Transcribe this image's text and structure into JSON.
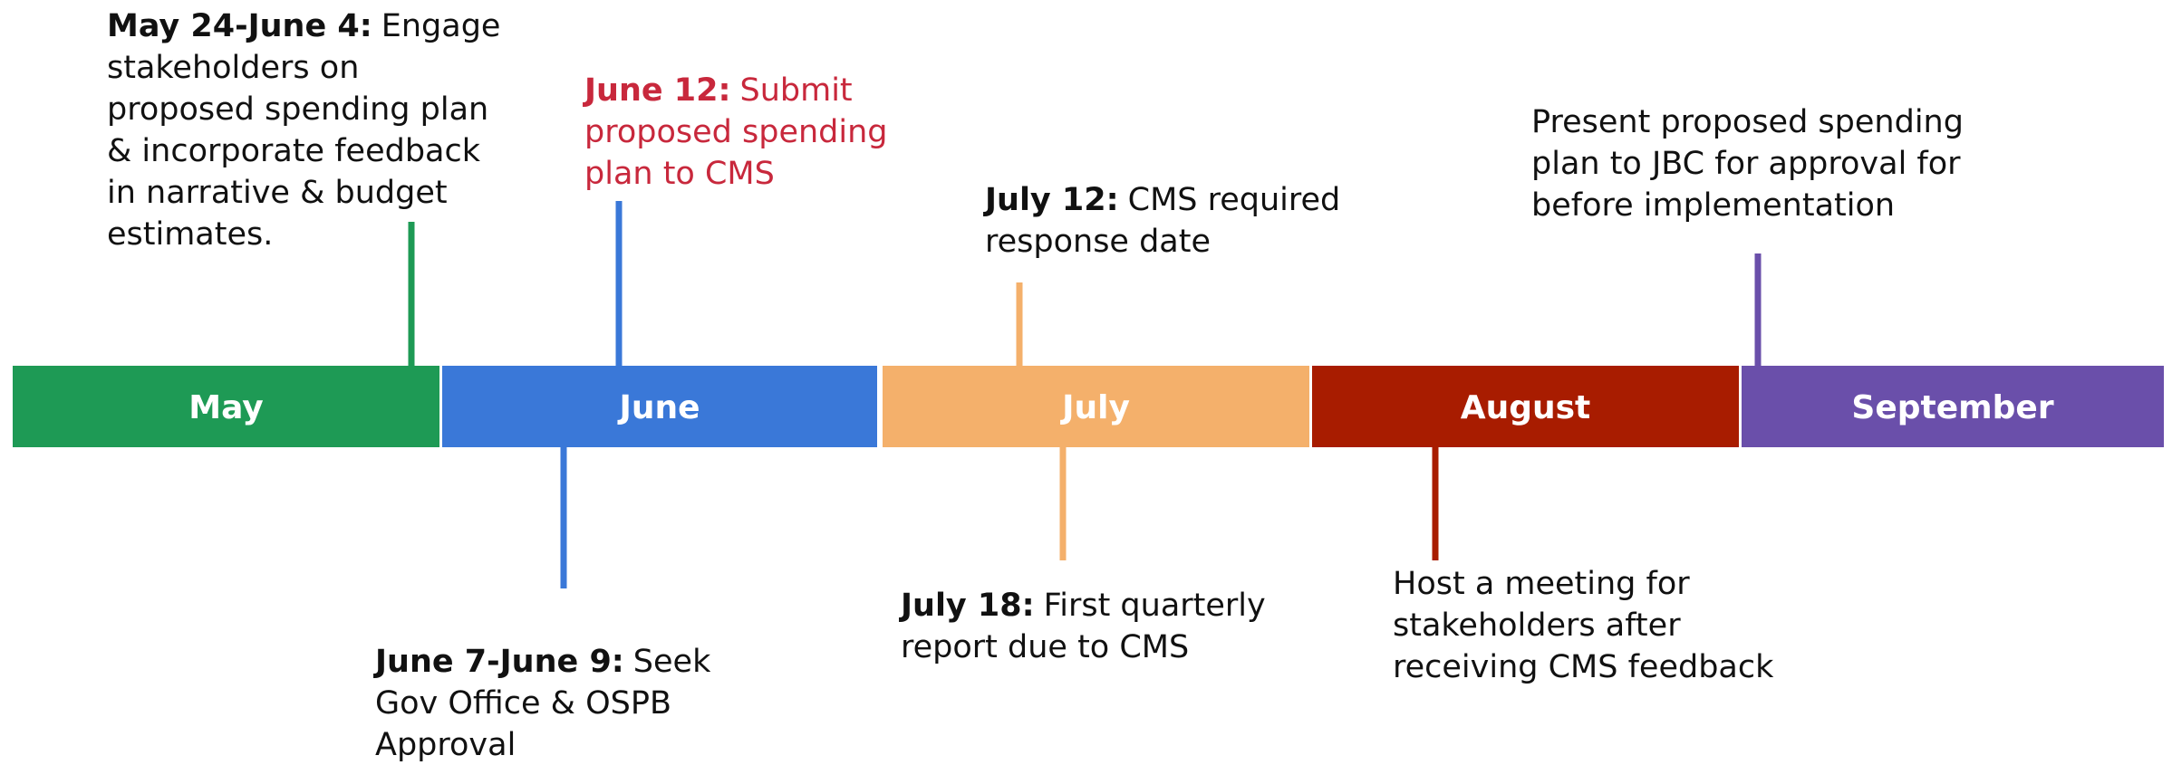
{
  "months": [
    {
      "label": "May",
      "color": "#1e9a55"
    },
    {
      "label": "June",
      "color": "#3a78d8"
    },
    {
      "label": "July",
      "color": "#f4b06b"
    },
    {
      "label": "August",
      "color": "#a81c00"
    },
    {
      "label": "September",
      "color": "#6a4faa"
    }
  ],
  "events": [
    {
      "date": "May 24-June 4:",
      "lines": [
        "Engage",
        "stakeholders on",
        "proposed spending plan",
        "& incorporate feedback",
        "in narrative & budget",
        "estimates."
      ],
      "color": "#1e9a55"
    },
    {
      "date": "June 12:",
      "lines": [
        "Submit",
        "proposed spending",
        "plan to CMS"
      ],
      "color": "#3a78d8",
      "text_color": "#c8283c"
    },
    {
      "date": "July 12:",
      "lines": [
        "CMS required",
        "response date"
      ],
      "color": "#f4b06b"
    },
    {
      "lines": [
        "Present proposed spending",
        "plan to JBC for approval for",
        "before implementation"
      ],
      "color": "#6a4faa"
    },
    {
      "date": "June 7-June 9:",
      "lines": [
        "Seek",
        "Gov Office & OSPB",
        "Approval"
      ],
      "color": "#3a78d8"
    },
    {
      "date": "July 18:",
      "lines": [
        "First quarterly",
        "report due to CMS"
      ],
      "color": "#f4b06b"
    },
    {
      "lines": [
        "Host a meeting for",
        "stakeholders after",
        "receiving CMS feedback"
      ],
      "color": "#a81c00"
    }
  ]
}
